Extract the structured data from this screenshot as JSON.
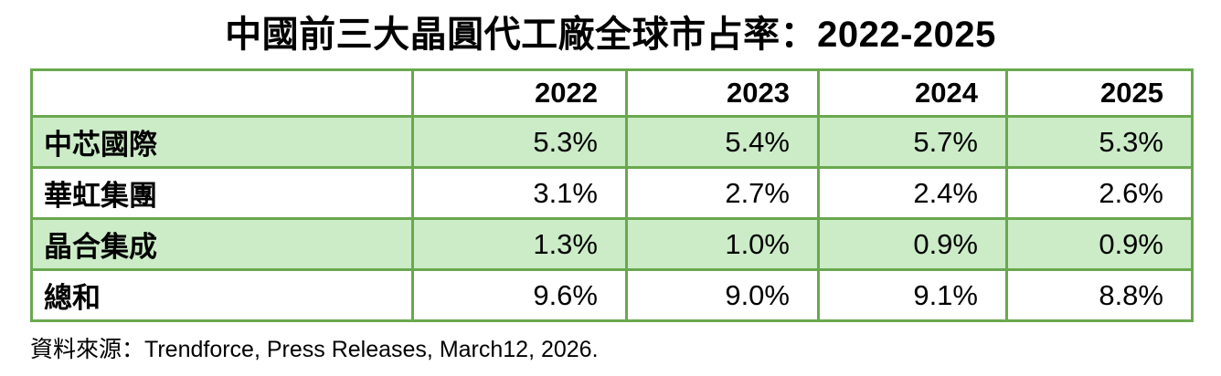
{
  "title": "中國前三大晶圓代工廠全球市占率：2022-2025",
  "source": "資料來源：Trendforce, Press Releases, March12, 2026.",
  "colors": {
    "table_border_green": "#6aa84f",
    "row_fill_green": "#cbecc7",
    "row_fill_white": "#ffffff",
    "text_black": "#000000"
  },
  "chart_data": {
    "type": "table",
    "title": "中國前三大晶圓代工廠全球市占率：2022-2025",
    "columns": [
      "",
      "2022",
      "2023",
      "2024",
      "2025"
    ],
    "rows": [
      {
        "label": "中芯國際",
        "values": [
          "5.3%",
          "5.4%",
          "5.7%",
          "5.3%"
        ]
      },
      {
        "label": "華虹集團",
        "values": [
          "3.1%",
          "2.7%",
          "2.4%",
          "2.6%"
        ]
      },
      {
        "label": "晶合集成",
        "values": [
          "1.3%",
          "1.0%",
          "0.9%",
          "0.9%"
        ]
      },
      {
        "label": "總和",
        "values": [
          "9.6%",
          "9.0%",
          "9.1%",
          "8.8%"
        ]
      }
    ],
    "layout": {
      "row_striping": [
        "white",
        "green",
        "white",
        "green",
        "white"
      ],
      "values_percent": {
        "series": [
          {
            "name": "中芯國際",
            "values": [
              5.3,
              5.4,
              5.7,
              5.3
            ]
          },
          {
            "name": "華虹集團",
            "values": [
              3.1,
              2.7,
              2.4,
              2.6
            ]
          },
          {
            "name": "晶合集成",
            "values": [
              1.3,
              1.0,
              0.9,
              0.9
            ]
          },
          {
            "name": "總和",
            "values": [
              9.6,
              9.0,
              9.1,
              8.8
            ]
          }
        ],
        "x": [
          2022,
          2023,
          2024,
          2025
        ]
      }
    }
  }
}
